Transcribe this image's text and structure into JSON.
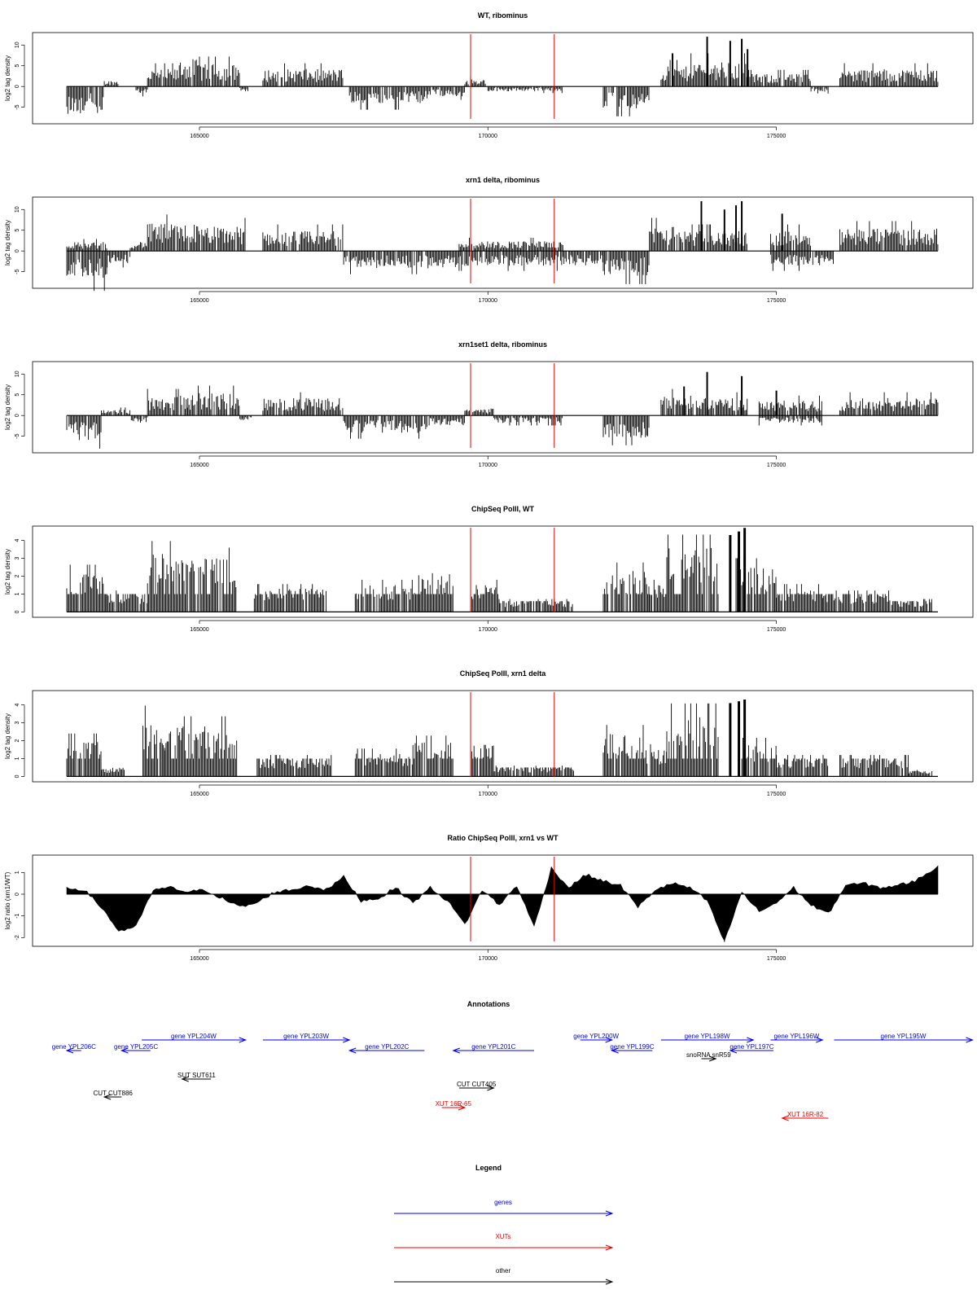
{
  "chart_data": [
    {
      "type": "bar",
      "title": "WT, ribominus",
      "ylabel": "log2 tag density",
      "ylim": [
        -9,
        13
      ],
      "yticks": [
        -5,
        0,
        5,
        10
      ],
      "xlim": [
        162700,
        177800
      ],
      "xticks": [
        165000,
        170000,
        175000
      ],
      "markers": [
        169700,
        171150
      ],
      "segments": [
        {
          "start": 162700,
          "end": 163350,
          "sign": -1,
          "level": 5.5
        },
        {
          "start": 163350,
          "end": 163600,
          "sign": 1,
          "level": 1.2
        },
        {
          "start": 163900,
          "end": 164100,
          "sign": -1,
          "level": 1.5
        },
        {
          "start": 164100,
          "end": 164650,
          "sign": 1,
          "level": 3.5
        },
        {
          "start": 164650,
          "end": 165000,
          "sign": 1,
          "level": 5.5
        },
        {
          "start": 165000,
          "end": 165700,
          "sign": 1,
          "level": 4.5
        },
        {
          "start": 165700,
          "end": 165850,
          "sign": -1,
          "level": 1
        },
        {
          "start": 166100,
          "end": 167500,
          "sign": 1,
          "level": 3.5
        },
        {
          "start": 167600,
          "end": 169000,
          "sign": -1,
          "level": 3.5
        },
        {
          "start": 169000,
          "end": 169600,
          "sign": -1,
          "level": 2
        },
        {
          "start": 169600,
          "end": 170000,
          "sign": 1,
          "level": 1.5
        },
        {
          "start": 170000,
          "end": 171300,
          "sign": -1,
          "level": 1
        },
        {
          "start": 172000,
          "end": 172800,
          "sign": -1,
          "level": 4.5
        },
        {
          "start": 173000,
          "end": 173500,
          "sign": 1,
          "level": 4
        },
        {
          "start": 173500,
          "end": 174500,
          "sign": 1,
          "level": 5
        },
        {
          "start": 174500,
          "end": 175600,
          "sign": 1,
          "level": 2.5
        },
        {
          "start": 175600,
          "end": 175900,
          "sign": -1,
          "level": 1.5
        },
        {
          "start": 176100,
          "end": 177800,
          "sign": 1,
          "level": 3.5
        }
      ],
      "peaks": [
        [
          173800,
          12
        ],
        [
          174200,
          11
        ],
        [
          174400,
          11.5
        ],
        [
          174500,
          9
        ],
        [
          173200,
          8
        ]
      ]
    },
    {
      "type": "bar",
      "title": "xrn1 delta, ribominus",
      "ylabel": "log2 tag density",
      "ylim": [
        -9,
        13
      ],
      "yticks": [
        -5,
        0,
        5,
        10
      ],
      "xlim": [
        162700,
        177800
      ],
      "xticks": [
        165000,
        170000,
        175000
      ],
      "markers": [
        169700,
        171150
      ],
      "segments": [
        {
          "start": 162700,
          "end": 163400,
          "sign": -1,
          "level": 6
        },
        {
          "start": 162700,
          "end": 163400,
          "sign": 1,
          "level": 1.8
        },
        {
          "start": 163400,
          "end": 163800,
          "sign": -1,
          "level": 2.5
        },
        {
          "start": 163800,
          "end": 164100,
          "sign": 1,
          "level": 2
        },
        {
          "start": 164100,
          "end": 165000,
          "sign": 1,
          "level": 5.5
        },
        {
          "start": 165000,
          "end": 165800,
          "sign": 1,
          "level": 5
        },
        {
          "start": 166100,
          "end": 167500,
          "sign": 1,
          "level": 4
        },
        {
          "start": 167500,
          "end": 169500,
          "sign": -1,
          "level": 3.5
        },
        {
          "start": 169500,
          "end": 171300,
          "sign": 1,
          "level": 2
        },
        {
          "start": 169500,
          "end": 172000,
          "sign": -1,
          "level": 3
        },
        {
          "start": 172000,
          "end": 172800,
          "sign": -1,
          "level": 5
        },
        {
          "start": 172800,
          "end": 173500,
          "sign": 1,
          "level": 5
        },
        {
          "start": 173500,
          "end": 174500,
          "sign": 1,
          "level": 4
        },
        {
          "start": 174900,
          "end": 175600,
          "sign": 1,
          "level": 4
        },
        {
          "start": 174900,
          "end": 176000,
          "sign": -1,
          "level": 3
        },
        {
          "start": 176100,
          "end": 177800,
          "sign": 1,
          "level": 4.5
        }
      ],
      "peaks": [
        [
          173700,
          12
        ],
        [
          174100,
          10
        ],
        [
          174400,
          12
        ],
        [
          174300,
          11
        ],
        [
          175100,
          9
        ]
      ]
    },
    {
      "type": "bar",
      "title": "xrn1set1 delta, ribominus",
      "ylabel": "log2 tag density",
      "ylim": [
        -9,
        13
      ],
      "yticks": [
        -5,
        0,
        5,
        10
      ],
      "xlim": [
        162700,
        177800
      ],
      "xticks": [
        165000,
        170000,
        175000
      ],
      "markers": [
        169700,
        171150
      ],
      "segments": [
        {
          "start": 162700,
          "end": 163300,
          "sign": -1,
          "level": 5
        },
        {
          "start": 163300,
          "end": 163800,
          "sign": 1,
          "level": 1.2
        },
        {
          "start": 163800,
          "end": 164100,
          "sign": -1,
          "level": 1.5
        },
        {
          "start": 164100,
          "end": 164800,
          "sign": 1,
          "level": 4
        },
        {
          "start": 164800,
          "end": 165700,
          "sign": 1,
          "level": 4.5
        },
        {
          "start": 165700,
          "end": 165900,
          "sign": -1,
          "level": 1
        },
        {
          "start": 166100,
          "end": 167500,
          "sign": 1,
          "level": 3.5
        },
        {
          "start": 167500,
          "end": 169000,
          "sign": -1,
          "level": 3.5
        },
        {
          "start": 169000,
          "end": 169600,
          "sign": -1,
          "level": 2
        },
        {
          "start": 169600,
          "end": 170100,
          "sign": 1,
          "level": 1.5
        },
        {
          "start": 170100,
          "end": 171300,
          "sign": -1,
          "level": 1.5
        },
        {
          "start": 172000,
          "end": 172800,
          "sign": -1,
          "level": 4.5
        },
        {
          "start": 173000,
          "end": 174000,
          "sign": 1,
          "level": 4
        },
        {
          "start": 174000,
          "end": 174500,
          "sign": 1,
          "level": 3.5
        },
        {
          "start": 174700,
          "end": 175800,
          "sign": 1,
          "level": 3
        },
        {
          "start": 174700,
          "end": 175800,
          "sign": -1,
          "level": 1.5
        },
        {
          "start": 176100,
          "end": 177800,
          "sign": 1,
          "level": 3.5
        }
      ],
      "peaks": [
        [
          173800,
          10.5
        ],
        [
          174400,
          9.5
        ],
        [
          173400,
          7
        ],
        [
          175000,
          6
        ]
      ]
    },
    {
      "type": "bar",
      "title": "ChipSeq PolII, WT",
      "ylabel": "log2 tag density",
      "ylim": [
        -0.3,
        4.8
      ],
      "yticks": [
        0,
        1,
        2,
        3,
        4
      ],
      "xlim": [
        162700,
        177800
      ],
      "xticks": [
        165000,
        170000,
        175000
      ],
      "markers": [
        169700,
        171150
      ],
      "segments": [
        {
          "start": 162700,
          "end": 163400,
          "sign": 1,
          "level": 2.2
        },
        {
          "start": 163400,
          "end": 164100,
          "sign": 1,
          "level": 1
        },
        {
          "start": 164100,
          "end": 165000,
          "sign": 1,
          "level": 3.3
        },
        {
          "start": 165000,
          "end": 165650,
          "sign": 1,
          "level": 3
        },
        {
          "start": 165950,
          "end": 167200,
          "sign": 1,
          "level": 1.3
        },
        {
          "start": 167700,
          "end": 168800,
          "sign": 1,
          "level": 1.5
        },
        {
          "start": 168800,
          "end": 169400,
          "sign": 1,
          "level": 2.3
        },
        {
          "start": 169700,
          "end": 170200,
          "sign": 1,
          "level": 1.5
        },
        {
          "start": 170200,
          "end": 171500,
          "sign": 1,
          "level": 0.6
        },
        {
          "start": 172000,
          "end": 172800,
          "sign": 1,
          "level": 2.3
        },
        {
          "start": 172800,
          "end": 173100,
          "sign": 1,
          "level": 1.5
        },
        {
          "start": 173100,
          "end": 174000,
          "sign": 1,
          "level": 3.6
        },
        {
          "start": 174300,
          "end": 175000,
          "sign": 1,
          "level": 2.5
        },
        {
          "start": 175000,
          "end": 175800,
          "sign": 1,
          "level": 1.3
        },
        {
          "start": 175800,
          "end": 177000,
          "sign": 1,
          "level": 1
        },
        {
          "start": 177000,
          "end": 177700,
          "sign": 1,
          "level": 0.6
        }
      ],
      "peaks": [
        [
          174200,
          4.3
        ],
        [
          174450,
          4.7
        ],
        [
          174350,
          4.5
        ]
      ]
    },
    {
      "type": "bar",
      "title": "ChipSeq PolII, xrn1 delta",
      "ylabel": "log2 tag density",
      "ylim": [
        -0.3,
        4.8
      ],
      "yticks": [
        0,
        1,
        2,
        3,
        4
      ],
      "xlim": [
        162700,
        177800
      ],
      "xticks": [
        165000,
        170000,
        175000
      ],
      "markers": [
        169700,
        171150
      ],
      "segments": [
        {
          "start": 162700,
          "end": 163300,
          "sign": 1,
          "level": 2
        },
        {
          "start": 163300,
          "end": 163700,
          "sign": 1,
          "level": 0.4
        },
        {
          "start": 164000,
          "end": 164400,
          "sign": 1,
          "level": 3.3
        },
        {
          "start": 164400,
          "end": 165650,
          "sign": 1,
          "level": 2.8
        },
        {
          "start": 166000,
          "end": 167300,
          "sign": 1,
          "level": 1
        },
        {
          "start": 167700,
          "end": 168700,
          "sign": 1,
          "level": 1.3
        },
        {
          "start": 168700,
          "end": 169400,
          "sign": 1,
          "level": 1.9
        },
        {
          "start": 169700,
          "end": 170100,
          "sign": 1,
          "level": 1.8
        },
        {
          "start": 170100,
          "end": 171500,
          "sign": 1,
          "level": 0.5
        },
        {
          "start": 172000,
          "end": 172700,
          "sign": 1,
          "level": 2.4
        },
        {
          "start": 172700,
          "end": 173100,
          "sign": 1,
          "level": 1.5
        },
        {
          "start": 173100,
          "end": 174000,
          "sign": 1,
          "level": 3.4
        },
        {
          "start": 174400,
          "end": 175000,
          "sign": 1,
          "level": 1.8
        },
        {
          "start": 175000,
          "end": 175900,
          "sign": 1,
          "level": 1
        },
        {
          "start": 176100,
          "end": 177300,
          "sign": 1,
          "level": 1
        },
        {
          "start": 177300,
          "end": 177700,
          "sign": 1,
          "level": 0.3
        }
      ],
      "peaks": [
        [
          174200,
          4.1
        ],
        [
          174450,
          4.3
        ],
        [
          174350,
          4.2
        ]
      ]
    },
    {
      "type": "area",
      "title": "Ratio ChipSeq PolII, xrn1 vs WT",
      "ylabel": "log2 ratio (xrn1/WT)",
      "ylim": [
        -2.4,
        1.8
      ],
      "yticks": [
        -2,
        -1,
        0,
        1
      ],
      "xlim": [
        162700,
        177800
      ],
      "xticks": [
        165000,
        170000,
        175000
      ],
      "markers": [
        169700,
        171150
      ],
      "x": [
        162700,
        163000,
        163300,
        163600,
        163900,
        164200,
        164500,
        164800,
        165100,
        165400,
        165700,
        166000,
        166300,
        166600,
        166900,
        167200,
        167500,
        167800,
        168100,
        168400,
        168700,
        169000,
        169300,
        169600,
        169900,
        170200,
        170500,
        170800,
        171100,
        171400,
        171700,
        172000,
        172300,
        172600,
        172900,
        173200,
        173500,
        173800,
        174100,
        174400,
        174700,
        175000,
        175300,
        175600,
        175900,
        176200,
        176500,
        176800,
        177100,
        177400,
        177800
      ],
      "y": [
        0.3,
        0.2,
        -0.6,
        -1.7,
        -1.5,
        0.2,
        0.3,
        0.1,
        0.2,
        -0.2,
        -0.6,
        -0.4,
        0.1,
        0.2,
        0.4,
        0.2,
        0.8,
        -0.3,
        -0.2,
        0.3,
        -0.4,
        0.3,
        -0.3,
        -1.4,
        0.2,
        -0.5,
        0.4,
        -1.5,
        1.2,
        0.3,
        0.9,
        0.6,
        0.4,
        -0.6,
        0.2,
        0.5,
        0.3,
        -0.3,
        -2.2,
        0.1,
        -0.8,
        -0.4,
        0.3,
        -0.5,
        -0.9,
        0.4,
        0.5,
        0.3,
        0.4,
        0.6,
        1.3
      ]
    }
  ],
  "annotations": {
    "title": "Annotations",
    "items": [
      {
        "label": "gene YPL206C",
        "color": "#0000ee",
        "from": 162700,
        "to": 162950,
        "dir": "left",
        "row": 2
      },
      {
        "label": "gene YPL205C",
        "color": "#0000ee",
        "from": 163650,
        "to": 164150,
        "dir": "left",
        "row": 2
      },
      {
        "label": "gene YPL204W",
        "color": "#0000ee",
        "from": 164000,
        "to": 165800,
        "dir": "right",
        "row": 1
      },
      {
        "label": "gene YPL203W",
        "color": "#0000ee",
        "from": 166100,
        "to": 167600,
        "dir": "right",
        "row": 1
      },
      {
        "label": "gene YPL202C",
        "color": "#0000ee",
        "from": 167600,
        "to": 168900,
        "dir": "left",
        "row": 2
      },
      {
        "label": "gene YPL201C",
        "color": "#0000ee",
        "from": 169400,
        "to": 170800,
        "dir": "left",
        "row": 2
      },
      {
        "label": "gene YPL200W",
        "color": "#0000ee",
        "from": 171600,
        "to": 172150,
        "dir": "right",
        "row": 1
      },
      {
        "label": "gene YPL199C",
        "color": "#0000ee",
        "from": 172150,
        "to": 172850,
        "dir": "left",
        "row": 2
      },
      {
        "label": "gene YPL198W",
        "color": "#0000ee",
        "from": 173000,
        "to": 174600,
        "dir": "right",
        "row": 1
      },
      {
        "label": "gene YPL197C",
        "color": "#0000ee",
        "from": 174200,
        "to": 174950,
        "dir": "left",
        "row": 2
      },
      {
        "label": "gene YPL196W",
        "color": "#0000ee",
        "from": 174900,
        "to": 175800,
        "dir": "right",
        "row": 1
      },
      {
        "label": "gene YPL195W",
        "color": "#0000ee",
        "from": 176000,
        "to": 178400,
        "dir": "right",
        "row": 1
      },
      {
        "label": "snoRNA snR59",
        "color": "#000000",
        "from": 173700,
        "to": 173950,
        "dir": "right",
        "row": 3
      },
      {
        "label": "SUT SUT611",
        "color": "#000000",
        "from": 164700,
        "to": 165200,
        "dir": "left",
        "row": 4
      },
      {
        "label": "CUT CUT405",
        "color": "#000000",
        "from": 169500,
        "to": 170100,
        "dir": "right",
        "row": 5
      },
      {
        "label": "CUT CUT886",
        "color": "#000000",
        "from": 163350,
        "to": 163650,
        "dir": "left",
        "row": 6
      },
      {
        "label": "XUT 16R-65",
        "color": "#ee0000",
        "from": 169200,
        "to": 169600,
        "dir": "right",
        "row": 7
      },
      {
        "label": "XUT 16R-82",
        "color": "#ee0000",
        "from": 175100,
        "to": 175900,
        "dir": "left",
        "row": 8
      }
    ]
  },
  "legend": {
    "title": "Legend",
    "entries": [
      {
        "label": "genes",
        "color": "#0000ee"
      },
      {
        "label": "XUTs",
        "color": "#ee0000"
      },
      {
        "label": "other",
        "color": "#000000"
      }
    ]
  }
}
